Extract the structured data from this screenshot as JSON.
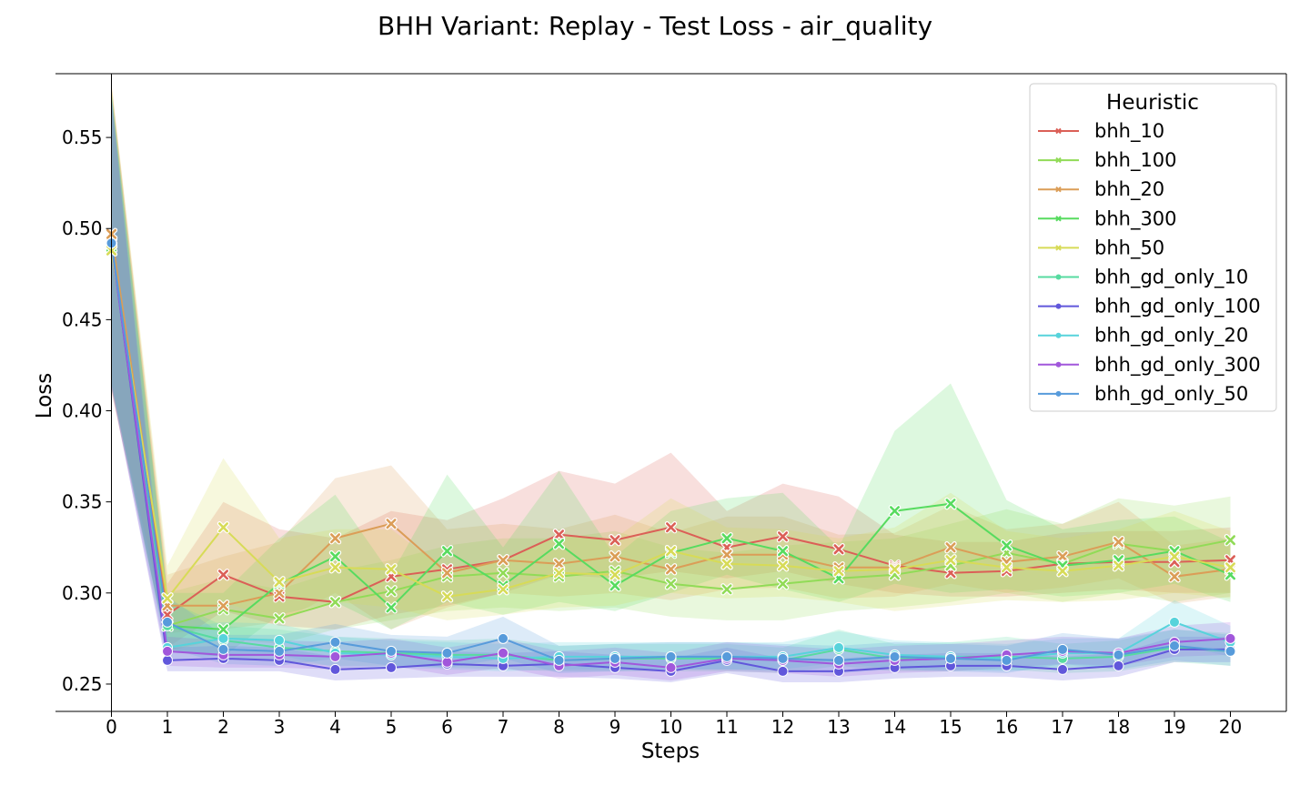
{
  "chart_data": {
    "type": "line",
    "title": "BHH Variant: Replay - Test Loss - air_quality",
    "xlabel": "Steps",
    "ylabel": "Loss",
    "xlim": [
      -1,
      21
    ],
    "ylim": [
      0.235,
      0.585
    ],
    "x": [
      0,
      1,
      2,
      3,
      4,
      5,
      6,
      7,
      8,
      9,
      10,
      11,
      12,
      13,
      14,
      15,
      16,
      17,
      18,
      19,
      20
    ],
    "yticks": [
      0.25,
      0.3,
      0.35,
      0.4,
      0.45,
      0.5,
      0.55
    ],
    "ytick_labels": [
      "0.25",
      "0.30",
      "0.35",
      "0.40",
      "0.45",
      "0.50",
      "0.55"
    ],
    "xtick_labels": [
      "0",
      "1",
      "2",
      "3",
      "4",
      "5",
      "6",
      "7",
      "8",
      "9",
      "10",
      "11",
      "12",
      "13",
      "14",
      "15",
      "16",
      "17",
      "18",
      "19",
      "20"
    ],
    "legend": {
      "title": "Heuristic",
      "position": "top-right"
    },
    "grid": false,
    "series": [
      {
        "name": "bhh_10",
        "color": "#db5f57",
        "marker": "x",
        "values": [
          0.492,
          0.288,
          0.31,
          0.298,
          0.295,
          0.309,
          0.313,
          0.318,
          0.332,
          0.329,
          0.336,
          0.325,
          0.331,
          0.324,
          0.315,
          0.311,
          0.312,
          0.316,
          0.317,
          0.317,
          0.318
        ],
        "lower": [
          0.41,
          0.27,
          0.29,
          0.282,
          0.28,
          0.288,
          0.293,
          0.3,
          0.31,
          0.308,
          0.312,
          0.308,
          0.312,
          0.305,
          0.3,
          0.298,
          0.298,
          0.3,
          0.302,
          0.3,
          0.3
        ],
        "upper": [
          0.58,
          0.305,
          0.35,
          0.335,
          0.33,
          0.345,
          0.34,
          0.352,
          0.367,
          0.36,
          0.377,
          0.345,
          0.36,
          0.353,
          0.332,
          0.328,
          0.328,
          0.333,
          0.334,
          0.334,
          0.336
        ]
      },
      {
        "name": "bhh_100",
        "color": "#91db57",
        "marker": "x",
        "values": [
          0.493,
          0.282,
          0.291,
          0.286,
          0.295,
          0.301,
          0.309,
          0.311,
          0.309,
          0.312,
          0.305,
          0.302,
          0.305,
          0.308,
          0.31,
          0.315,
          0.322,
          0.316,
          0.327,
          0.323,
          0.329
        ],
        "lower": [
          0.415,
          0.268,
          0.275,
          0.272,
          0.28,
          0.285,
          0.29,
          0.292,
          0.29,
          0.292,
          0.287,
          0.285,
          0.285,
          0.29,
          0.292,
          0.295,
          0.3,
          0.295,
          0.3,
          0.295,
          0.3
        ],
        "upper": [
          0.578,
          0.3,
          0.308,
          0.302,
          0.312,
          0.318,
          0.326,
          0.33,
          0.33,
          0.334,
          0.325,
          0.322,
          0.326,
          0.328,
          0.33,
          0.338,
          0.346,
          0.338,
          0.352,
          0.348,
          0.353
        ]
      },
      {
        "name": "bhh_20",
        "color": "#db9d57",
        "marker": "x",
        "values": [
          0.497,
          0.293,
          0.293,
          0.3,
          0.33,
          0.338,
          0.311,
          0.318,
          0.316,
          0.32,
          0.313,
          0.321,
          0.321,
          0.314,
          0.314,
          0.325,
          0.317,
          0.32,
          0.328,
          0.309,
          0.313
        ],
        "lower": [
          0.412,
          0.278,
          0.28,
          0.284,
          0.3,
          0.28,
          0.292,
          0.3,
          0.298,
          0.3,
          0.296,
          0.302,
          0.303,
          0.297,
          0.298,
          0.305,
          0.3,
          0.303,
          0.308,
          0.294,
          0.298
        ],
        "upper": [
          0.578,
          0.31,
          0.32,
          0.328,
          0.363,
          0.37,
          0.335,
          0.338,
          0.335,
          0.343,
          0.333,
          0.342,
          0.342,
          0.332,
          0.333,
          0.348,
          0.335,
          0.338,
          0.35,
          0.326,
          0.33
        ]
      },
      {
        "name": "bhh_300",
        "color": "#57db5f",
        "marker": "x",
        "values": [
          0.49,
          0.282,
          0.28,
          0.305,
          0.32,
          0.292,
          0.323,
          0.304,
          0.327,
          0.304,
          0.322,
          0.33,
          0.323,
          0.308,
          0.345,
          0.349,
          0.326,
          0.315,
          0.318,
          0.323,
          0.31
        ],
        "lower": [
          0.412,
          0.268,
          0.265,
          0.288,
          0.295,
          0.28,
          0.295,
          0.288,
          0.295,
          0.29,
          0.3,
          0.31,
          0.302,
          0.295,
          0.305,
          0.3,
          0.302,
          0.298,
          0.3,
          0.305,
          0.295
        ],
        "upper": [
          0.575,
          0.3,
          0.3,
          0.33,
          0.354,
          0.31,
          0.365,
          0.325,
          0.367,
          0.32,
          0.345,
          0.352,
          0.355,
          0.325,
          0.389,
          0.415,
          0.351,
          0.335,
          0.34,
          0.342,
          0.328
        ]
      },
      {
        "name": "bhh_50",
        "color": "#d7db57",
        "marker": "x",
        "values": [
          0.488,
          0.297,
          0.336,
          0.306,
          0.314,
          0.313,
          0.298,
          0.302,
          0.311,
          0.31,
          0.323,
          0.316,
          0.315,
          0.312,
          0.313,
          0.318,
          0.314,
          0.312,
          0.315,
          0.32,
          0.314
        ],
        "lower": [
          0.415,
          0.28,
          0.295,
          0.285,
          0.295,
          0.292,
          0.285,
          0.288,
          0.292,
          0.293,
          0.3,
          0.297,
          0.298,
          0.295,
          0.29,
          0.293,
          0.296,
          0.295,
          0.296,
          0.3,
          0.297
        ],
        "upper": [
          0.58,
          0.315,
          0.374,
          0.33,
          0.335,
          0.335,
          0.312,
          0.318,
          0.332,
          0.33,
          0.352,
          0.336,
          0.335,
          0.33,
          0.336,
          0.355,
          0.334,
          0.33,
          0.335,
          0.345,
          0.334
        ]
      },
      {
        "name": "bhh_gd_only_10",
        "color": "#57dba0",
        "marker": "o",
        "values": [
          0.492,
          0.282,
          0.274,
          0.27,
          0.268,
          0.267,
          0.266,
          0.266,
          0.263,
          0.264,
          0.264,
          0.264,
          0.263,
          0.269,
          0.264,
          0.265,
          0.265,
          0.264,
          0.265,
          0.27,
          0.268
        ],
        "lower": [
          0.415,
          0.268,
          0.265,
          0.262,
          0.26,
          0.26,
          0.259,
          0.258,
          0.257,
          0.257,
          0.257,
          0.257,
          0.256,
          0.26,
          0.257,
          0.257,
          0.258,
          0.256,
          0.257,
          0.262,
          0.26
        ],
        "upper": [
          0.575,
          0.296,
          0.282,
          0.28,
          0.276,
          0.275,
          0.274,
          0.275,
          0.271,
          0.272,
          0.272,
          0.272,
          0.27,
          0.28,
          0.272,
          0.273,
          0.276,
          0.272,
          0.274,
          0.28,
          0.278
        ]
      },
      {
        "name": "bhh_gd_only_100",
        "color": "#6157db",
        "marker": "o",
        "values": [
          0.492,
          0.263,
          0.264,
          0.263,
          0.258,
          0.259,
          0.261,
          0.26,
          0.261,
          0.259,
          0.257,
          0.263,
          0.257,
          0.257,
          0.259,
          0.26,
          0.26,
          0.258,
          0.26,
          0.269,
          0.269
        ],
        "lower": [
          0.413,
          0.257,
          0.257,
          0.257,
          0.252,
          0.253,
          0.254,
          0.254,
          0.254,
          0.253,
          0.251,
          0.256,
          0.251,
          0.251,
          0.253,
          0.254,
          0.254,
          0.252,
          0.254,
          0.262,
          0.262
        ],
        "upper": [
          0.572,
          0.27,
          0.271,
          0.27,
          0.265,
          0.266,
          0.268,
          0.267,
          0.268,
          0.266,
          0.264,
          0.27,
          0.264,
          0.264,
          0.266,
          0.267,
          0.267,
          0.265,
          0.267,
          0.276,
          0.276
        ]
      },
      {
        "name": "bhh_gd_only_20",
        "color": "#57d3db",
        "marker": "o",
        "values": [
          0.492,
          0.27,
          0.275,
          0.274,
          0.267,
          0.266,
          0.265,
          0.264,
          0.265,
          0.265,
          0.265,
          0.265,
          0.265,
          0.27,
          0.266,
          0.265,
          0.264,
          0.267,
          0.267,
          0.284,
          0.273
        ],
        "lower": [
          0.415,
          0.262,
          0.266,
          0.266,
          0.259,
          0.259,
          0.258,
          0.257,
          0.258,
          0.258,
          0.258,
          0.258,
          0.258,
          0.262,
          0.258,
          0.258,
          0.257,
          0.259,
          0.26,
          0.272,
          0.265
        ],
        "upper": [
          0.575,
          0.28,
          0.284,
          0.283,
          0.276,
          0.274,
          0.273,
          0.272,
          0.273,
          0.273,
          0.273,
          0.273,
          0.273,
          0.279,
          0.274,
          0.273,
          0.272,
          0.275,
          0.275,
          0.296,
          0.282
        ]
      },
      {
        "name": "bhh_gd_only_300",
        "color": "#a157db",
        "marker": "o",
        "values": [
          0.492,
          0.268,
          0.266,
          0.266,
          0.265,
          0.267,
          0.262,
          0.267,
          0.26,
          0.262,
          0.259,
          0.264,
          0.263,
          0.261,
          0.263,
          0.264,
          0.266,
          0.268,
          0.267,
          0.273,
          0.275
        ],
        "lower": [
          0.412,
          0.26,
          0.259,
          0.259,
          0.258,
          0.26,
          0.255,
          0.259,
          0.253,
          0.255,
          0.252,
          0.257,
          0.256,
          0.254,
          0.256,
          0.257,
          0.259,
          0.261,
          0.26,
          0.265,
          0.266
        ],
        "upper": [
          0.573,
          0.276,
          0.274,
          0.274,
          0.273,
          0.275,
          0.27,
          0.275,
          0.268,
          0.27,
          0.267,
          0.273,
          0.271,
          0.269,
          0.271,
          0.272,
          0.274,
          0.276,
          0.275,
          0.282,
          0.284
        ]
      },
      {
        "name": "bhh_gd_only_50",
        "color": "#579bdb",
        "marker": "o",
        "values": [
          0.492,
          0.284,
          0.269,
          0.268,
          0.273,
          0.268,
          0.267,
          0.275,
          0.263,
          0.264,
          0.265,
          0.265,
          0.264,
          0.263,
          0.265,
          0.264,
          0.263,
          0.269,
          0.266,
          0.271,
          0.268
        ],
        "lower": [
          0.414,
          0.27,
          0.261,
          0.26,
          0.264,
          0.26,
          0.259,
          0.264,
          0.256,
          0.257,
          0.258,
          0.258,
          0.257,
          0.256,
          0.258,
          0.257,
          0.256,
          0.261,
          0.258,
          0.263,
          0.26
        ],
        "upper": [
          0.574,
          0.298,
          0.277,
          0.277,
          0.283,
          0.277,
          0.276,
          0.287,
          0.271,
          0.272,
          0.273,
          0.273,
          0.272,
          0.271,
          0.273,
          0.272,
          0.271,
          0.278,
          0.275,
          0.28,
          0.277
        ]
      }
    ]
  }
}
